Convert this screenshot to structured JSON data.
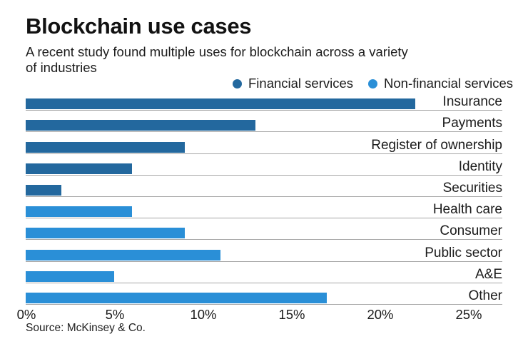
{
  "header": {
    "title": "Blockchain use cases",
    "subtitle": "A recent study found multiple uses for blockchain across a variety of industries"
  },
  "footer": {
    "source": "Source: McKinsey & Co."
  },
  "colors": {
    "financial": "#23689e",
    "non_financial": "#2a8fd7",
    "row_line": "#a6a6a6",
    "text": "#1a1a1a"
  },
  "chart_data": {
    "type": "bar",
    "orientation": "horizontal",
    "title": "Blockchain use cases",
    "subtitle": "A recent study found multiple uses for blockchain across a variety of industries",
    "unit": "percent",
    "xlim": [
      0,
      25
    ],
    "grid": false,
    "legend_position": "top-right",
    "x_ticks": [
      {
        "label": "0%",
        "value": 0
      },
      {
        "label": "5%",
        "value": 5
      },
      {
        "label": "10%",
        "value": 10
      },
      {
        "label": "15%",
        "value": 15
      },
      {
        "label": "20%",
        "value": 20
      },
      {
        "label": "25%",
        "value": 25
      }
    ],
    "legend": [
      {
        "name": "Financial services",
        "color": "#23689e"
      },
      {
        "name": "Non-financial services",
        "color": "#2a8fd7"
      }
    ],
    "bars": [
      {
        "label": "Insurance",
        "value": 22,
        "series": 0
      },
      {
        "label": "Payments",
        "value": 13,
        "series": 0
      },
      {
        "label": "Register of ownership",
        "value": 9,
        "series": 0
      },
      {
        "label": "Identity",
        "value": 6,
        "series": 0
      },
      {
        "label": "Securities",
        "value": 2,
        "series": 0
      },
      {
        "label": "Health care",
        "value": 6,
        "series": 1
      },
      {
        "label": "Consumer",
        "value": 9,
        "series": 1
      },
      {
        "label": "Public sector",
        "value": 11,
        "series": 1
      },
      {
        "label": "A&E",
        "value": 5,
        "series": 1
      },
      {
        "label": "Other",
        "value": 17,
        "series": 1
      }
    ]
  }
}
